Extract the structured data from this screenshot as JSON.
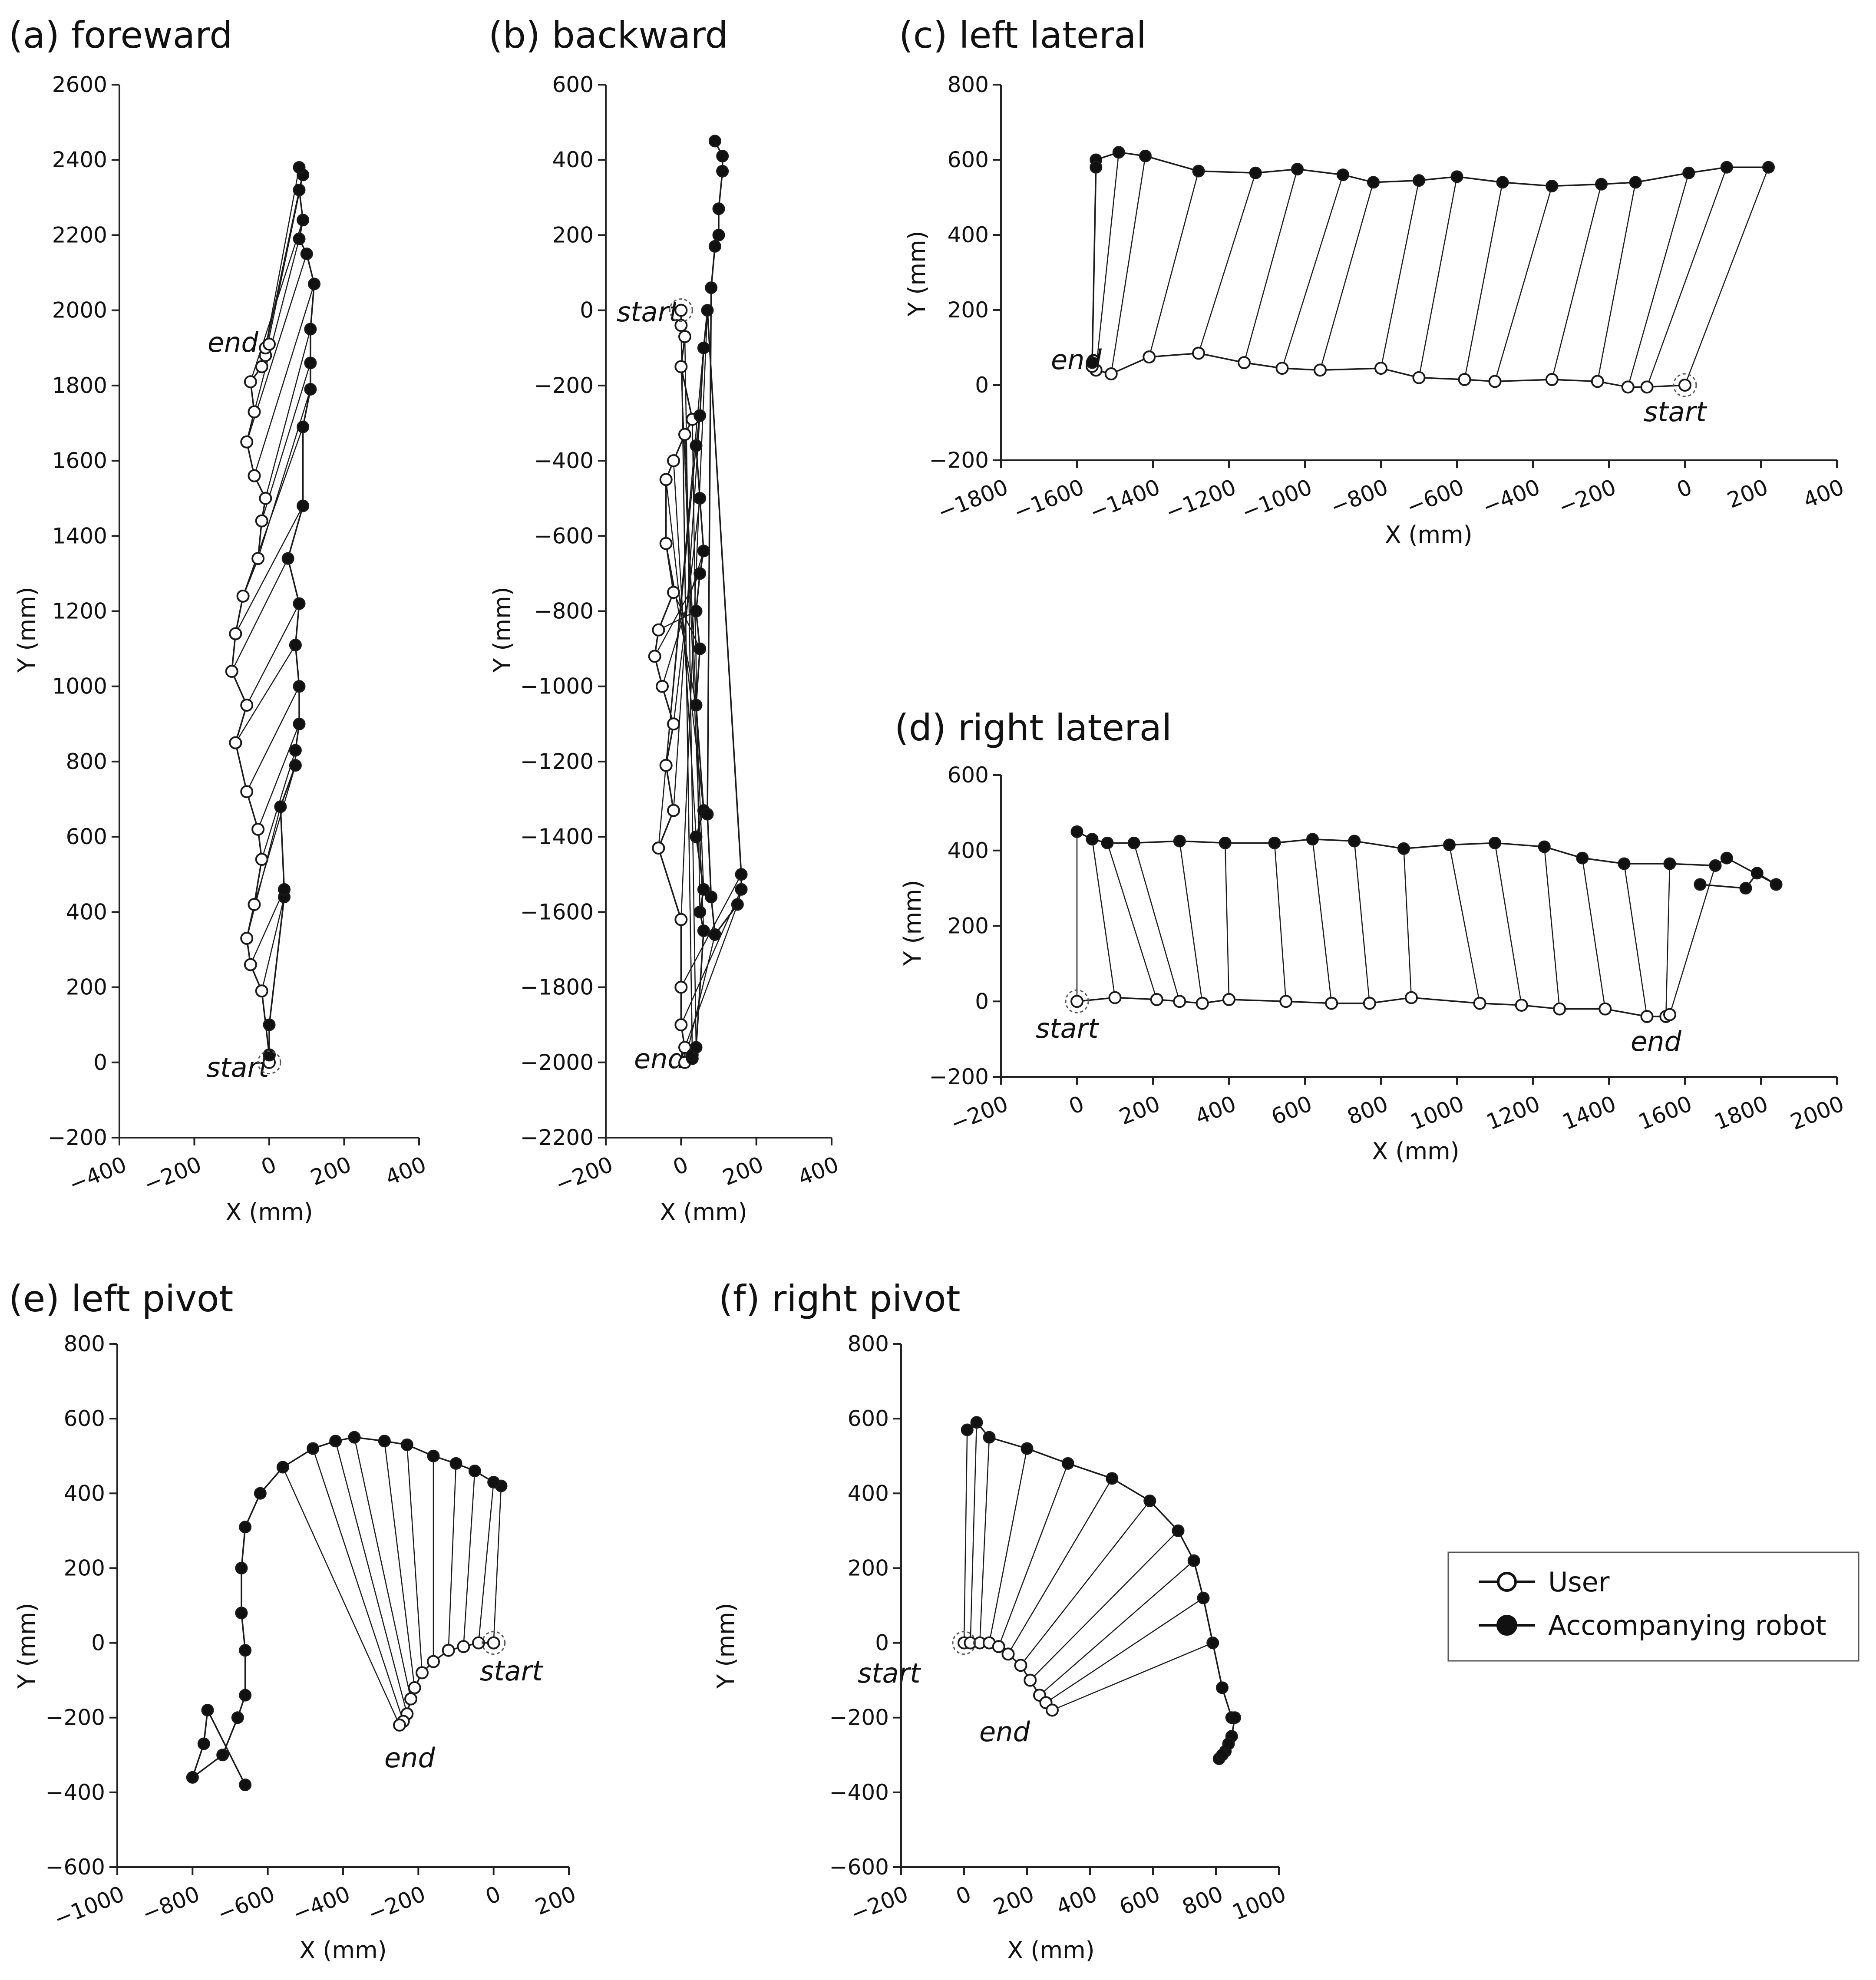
{
  "chart_data": [
    {
      "type": "line",
      "title": "(a) foreward",
      "xlabel": "X (mm)",
      "ylabel": "Y (mm)",
      "xlim": [
        -400,
        400
      ],
      "ylim": [
        -200,
        2600
      ],
      "xticks": [
        -400,
        -200,
        0,
        200,
        400
      ],
      "yticks": [
        -200,
        0,
        200,
        400,
        600,
        800,
        1000,
        1200,
        1400,
        1600,
        1800,
        2000,
        2200,
        2400,
        2600
      ],
      "xtick_labels": [
        "−400",
        "−200",
        "0",
        "200",
        "400"
      ],
      "ytick_labels": [
        "−200",
        "0",
        "200",
        "400",
        "600",
        "800",
        "1000",
        "1200",
        "1400",
        "1600",
        "1800",
        "2000",
        "2200",
        "2400",
        "2600"
      ],
      "series": [
        {
          "name": "User",
          "x": [
            0,
            0,
            -20,
            -50,
            -60,
            -40,
            -20,
            -30,
            -60,
            -90,
            -60,
            -100,
            -90,
            -70,
            -30,
            -20,
            -10,
            -40,
            -60,
            -40,
            -50,
            -20,
            -10,
            -10,
            0
          ],
          "y": [
            0,
            20,
            190,
            260,
            330,
            420,
            540,
            620,
            720,
            850,
            950,
            1040,
            1140,
            1240,
            1340,
            1440,
            1500,
            1560,
            1650,
            1730,
            1810,
            1850,
            1880,
            1900,
            1910
          ]
        },
        {
          "name": "Accompanying robot",
          "x": [
            0,
            0,
            40,
            40,
            30,
            70,
            70,
            80,
            80,
            70,
            80,
            50,
            90,
            90,
            110,
            110,
            110,
            120,
            100,
            80,
            90,
            80,
            90,
            80
          ],
          "y": [
            20,
            100,
            440,
            460,
            680,
            790,
            830,
            900,
            1000,
            1110,
            1220,
            1340,
            1480,
            1690,
            1790,
            1860,
            1950,
            2070,
            2150,
            2190,
            2240,
            2320,
            2360,
            2380
          ]
        }
      ],
      "annotations": [
        "start",
        "end"
      ]
    },
    {
      "type": "line",
      "title": "(b) backward",
      "xlabel": "X (mm)",
      "ylabel": "Y (mm)",
      "xlim": [
        -200,
        400
      ],
      "ylim": [
        -2200,
        600
      ],
      "xticks": [
        -200,
        0,
        200,
        400
      ],
      "yticks": [
        -2200,
        -2000,
        -1800,
        -1600,
        -1400,
        -1200,
        -1000,
        -800,
        -600,
        -400,
        -200,
        0,
        200,
        400,
        600
      ],
      "xtick_labels": [
        "−200",
        "0",
        "200",
        "400"
      ],
      "ytick_labels": [
        "−2200",
        "−2000",
        "−1800",
        "−1600",
        "−1400",
        "−1200",
        "−1000",
        "−800",
        "−600",
        "−400",
        "−200",
        "0",
        "200",
        "400",
        "600"
      ],
      "series": [
        {
          "name": "User",
          "x": [
            0,
            0,
            10,
            0,
            30,
            10,
            -20,
            -40,
            -40,
            -20,
            -60,
            -70,
            -50,
            -20,
            -40,
            -20,
            -60,
            0,
            0,
            0,
            10,
            10
          ],
          "y": [
            0,
            -40,
            -70,
            -150,
            -290,
            -330,
            -400,
            -450,
            -620,
            -750,
            -850,
            -920,
            -1000,
            -1100,
            -1210,
            -1330,
            -1430,
            -1620,
            -1800,
            -1900,
            -1960,
            -2000
          ]
        },
        {
          "name": "Accompanying robot",
          "x": [
            30,
            30,
            40,
            60,
            50,
            60,
            40,
            60,
            40,
            50,
            40,
            50,
            60,
            50,
            40,
            50,
            60,
            70,
            160,
            160,
            150,
            90,
            80,
            70,
            80,
            90,
            100,
            100,
            110,
            110,
            90
          ],
          "y": [
            -1990,
            -1980,
            -1960,
            -1650,
            -1600,
            -1540,
            -1400,
            -1330,
            -1050,
            -900,
            -800,
            -700,
            -640,
            -500,
            -360,
            -280,
            -100,
            0,
            -1500,
            -1540,
            -1580,
            -1660,
            -1560,
            -1340,
            60,
            170,
            200,
            270,
            370,
            410,
            450
          ]
        }
      ],
      "annotations": [
        "start",
        "end"
      ]
    },
    {
      "type": "line",
      "title": "(c) left lateral",
      "xlabel": "X (mm)",
      "ylabel": "Y (mm)",
      "xlim": [
        -1800,
        400
      ],
      "ylim": [
        -200,
        800
      ],
      "xticks": [
        -1800,
        -1600,
        -1400,
        -1200,
        -1000,
        -800,
        -600,
        -400,
        -200,
        0,
        200,
        400
      ],
      "yticks": [
        -200,
        0,
        200,
        400,
        600,
        800
      ],
      "xtick_labels": [
        "−1800",
        "−1600",
        "−1400",
        "−1200",
        "−1000",
        "−800",
        "−600",
        "−400",
        "−200",
        "0",
        "200",
        "400"
      ],
      "ytick_labels": [
        "−200",
        "0",
        "200",
        "400",
        "600",
        "800"
      ],
      "series": [
        {
          "name": "User",
          "x": [
            0,
            -100,
            -150,
            -230,
            -350,
            -500,
            -580,
            -700,
            -800,
            -960,
            -1060,
            -1160,
            -1280,
            -1410,
            -1510,
            -1550,
            -1560
          ],
          "y": [
            0,
            -5,
            -5,
            10,
            15,
            10,
            15,
            20,
            45,
            40,
            45,
            60,
            85,
            75,
            30,
            40,
            50
          ]
        },
        {
          "name": "Accompanying robot",
          "x": [
            220,
            110,
            10,
            -130,
            -220,
            -350,
            -480,
            -600,
            -700,
            -820,
            -900,
            -1020,
            -1130,
            -1280,
            -1420,
            -1490,
            -1550,
            -1550,
            -1560
          ],
          "y": [
            580,
            580,
            565,
            540,
            535,
            530,
            540,
            555,
            545,
            540,
            560,
            575,
            565,
            570,
            610,
            620,
            600,
            580,
            60
          ]
        }
      ],
      "annotations": [
        "start",
        "end"
      ]
    },
    {
      "type": "line",
      "title": "(d) right lateral",
      "xlabel": "X (mm)",
      "ylabel": "Y (mm)",
      "xlim": [
        -200,
        2000
      ],
      "ylim": [
        -200,
        600
      ],
      "xticks": [
        -200,
        0,
        200,
        400,
        600,
        800,
        1000,
        1200,
        1400,
        1600,
        1800,
        2000
      ],
      "yticks": [
        -200,
        0,
        200,
        400,
        600
      ],
      "xtick_labels": [
        "−200",
        "0",
        "200",
        "400",
        "600",
        "800",
        "1000",
        "1200",
        "1400",
        "1600",
        "1800",
        "2000"
      ],
      "ytick_labels": [
        "−200",
        "0",
        "200",
        "400",
        "600"
      ],
      "series": [
        {
          "name": "User",
          "x": [
            0,
            100,
            210,
            270,
            330,
            400,
            550,
            670,
            770,
            880,
            1060,
            1170,
            1270,
            1390,
            1500,
            1550,
            1560
          ],
          "y": [
            0,
            10,
            5,
            0,
            -5,
            5,
            0,
            -5,
            -5,
            10,
            -5,
            -10,
            -20,
            -20,
            -40,
            -40,
            -35
          ]
        },
        {
          "name": "Accompanying robot",
          "x": [
            0,
            40,
            80,
            150,
            270,
            390,
            520,
            620,
            730,
            860,
            980,
            1100,
            1230,
            1330,
            1440,
            1560,
            1680,
            1710,
            1840,
            1790,
            1760,
            1640
          ],
          "y": [
            450,
            430,
            420,
            420,
            425,
            420,
            420,
            430,
            425,
            405,
            415,
            420,
            410,
            380,
            365,
            365,
            360,
            380,
            310,
            340,
            300,
            310
          ]
        }
      ],
      "annotations": [
        "start",
        "end"
      ]
    },
    {
      "type": "line",
      "title": "(e) left pivot",
      "xlabel": "X (mm)",
      "ylabel": "Y (mm)",
      "xlim": [
        -1000,
        200
      ],
      "ylim": [
        -600,
        800
      ],
      "xticks": [
        -1000,
        -800,
        -600,
        -400,
        -200,
        0,
        200
      ],
      "yticks": [
        -600,
        -400,
        -200,
        0,
        200,
        400,
        600,
        800
      ],
      "xtick_labels": [
        "−1000",
        "−800",
        "−600",
        "−400",
        "−200",
        "0",
        "200"
      ],
      "ytick_labels": [
        "−600",
        "−400",
        "−200",
        "0",
        "200",
        "400",
        "600",
        "800"
      ],
      "series": [
        {
          "name": "User",
          "x": [
            0,
            -40,
            -80,
            -120,
            -160,
            -190,
            -210,
            -220,
            -230,
            -240,
            -250
          ],
          "y": [
            0,
            0,
            -10,
            -20,
            -50,
            -80,
            -120,
            -150,
            -190,
            -210,
            -220
          ]
        },
        {
          "name": "Accompanying robot",
          "x": [
            20,
            0,
            -50,
            -100,
            -160,
            -230,
            -290,
            -370,
            -420,
            -480,
            -560,
            -620,
            -660,
            -670,
            -670,
            -660,
            -660,
            -680,
            -720,
            -800,
            -770,
            -760,
            -660
          ],
          "y": [
            420,
            430,
            460,
            480,
            500,
            530,
            540,
            550,
            540,
            520,
            470,
            400,
            310,
            200,
            80,
            -20,
            -140,
            -200,
            -300,
            -360,
            -270,
            -180,
            -380
          ]
        }
      ],
      "annotations": [
        "start",
        "end"
      ]
    },
    {
      "type": "line",
      "title": "(f) right pivot",
      "xlabel": "X (mm)",
      "ylabel": "Y (mm)",
      "xlim": [
        -200,
        1000
      ],
      "ylim": [
        -600,
        800
      ],
      "xticks": [
        -200,
        0,
        200,
        400,
        600,
        800,
        1000
      ],
      "yticks": [
        -600,
        -400,
        -200,
        0,
        200,
        400,
        600,
        800
      ],
      "xtick_labels": [
        "−200",
        "0",
        "200",
        "400",
        "600",
        "800",
        "1000"
      ],
      "ytick_labels": [
        "−600",
        "−400",
        "−200",
        "0",
        "200",
        "400",
        "600",
        "800"
      ],
      "series": [
        {
          "name": "User",
          "x": [
            0,
            20,
            50,
            80,
            110,
            140,
            180,
            210,
            240,
            260,
            280
          ],
          "y": [
            0,
            0,
            0,
            0,
            -10,
            -30,
            -60,
            -100,
            -140,
            -160,
            -180
          ]
        },
        {
          "name": "Accompanying robot",
          "x": [
            10,
            40,
            80,
            200,
            330,
            470,
            590,
            680,
            730,
            760,
            790,
            820,
            850,
            860,
            850,
            830,
            810,
            820,
            840
          ],
          "y": [
            570,
            590,
            550,
            520,
            480,
            440,
            380,
            300,
            220,
            120,
            0,
            -120,
            -200,
            -200,
            -250,
            -290,
            -310,
            -300,
            -270
          ]
        }
      ],
      "annotations": [
        "start",
        "end"
      ]
    }
  ],
  "legend": {
    "entries": [
      "User",
      "Accompanying robot"
    ],
    "placement": "right of panel (f)"
  },
  "colors": {
    "line": "#1a1a1a",
    "user_fill": "#ffffff",
    "robot_fill": "#111111",
    "axis": "#222222"
  }
}
